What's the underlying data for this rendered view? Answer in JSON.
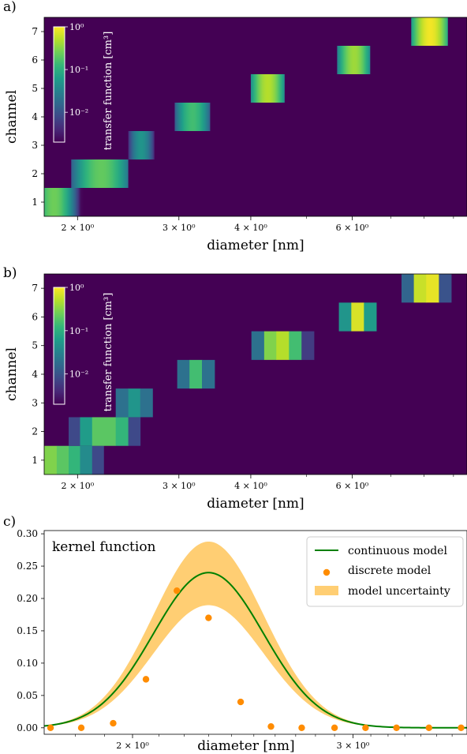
{
  "panels": [
    {
      "panel_label": "a)",
      "chart_data": {
        "type": "heatmap",
        "variant": "continuous",
        "xlabel": "diameter [nm]",
        "ylabel": "channel",
        "x_scale": "log",
        "xlim": [
          1.75,
          9.5
        ],
        "x_ticks": [
          {
            "value": 2,
            "label": "2 × 10⁰"
          },
          {
            "value": 3,
            "label": "3 × 10⁰"
          },
          {
            "value": 4,
            "label": "4 × 10⁰"
          },
          {
            "value": 6,
            "label": "6 × 10⁰"
          }
        ],
        "y_ticks": [
          1,
          2,
          3,
          4,
          5,
          6,
          7
        ],
        "channels": [
          {
            "channel": 1,
            "d_min": 1.75,
            "d_max": 2.05,
            "center": 1.82,
            "peak": 0.25
          },
          {
            "channel": 2,
            "d_min": 1.95,
            "d_max": 2.45,
            "center": 2.2,
            "peak": 0.22
          },
          {
            "channel": 3,
            "d_min": 2.45,
            "d_max": 2.72,
            "center": 2.58,
            "peak": 0.05
          },
          {
            "channel": 4,
            "d_min": 2.95,
            "d_max": 3.4,
            "center": 3.17,
            "peak": 0.15
          },
          {
            "channel": 5,
            "d_min": 4.0,
            "d_max": 4.58,
            "center": 4.28,
            "peak": 0.5
          },
          {
            "channel": 6,
            "d_min": 5.65,
            "d_max": 6.45,
            "center": 6.05,
            "peak": 0.4
          },
          {
            "channel": 7,
            "d_min": 7.6,
            "d_max": 8.8,
            "center": 8.2,
            "peak": 0.9
          }
        ],
        "colorbar": {
          "label": "transfer function [cm³]",
          "scale": "log",
          "range": [
            0.002,
            1
          ],
          "ticks": [
            {
              "value": 1,
              "label": "10⁰"
            },
            {
              "value": 0.1,
              "label": "10⁻¹"
            },
            {
              "value": 0.01,
              "label": "10⁻²"
            }
          ]
        }
      }
    },
    {
      "panel_label": "b)",
      "chart_data": {
        "type": "heatmap",
        "variant": "discrete",
        "xlabel": "diameter [nm]",
        "ylabel": "channel",
        "x_scale": "log",
        "xlim": [
          1.75,
          9.5
        ],
        "x_ticks": [
          {
            "value": 2,
            "label": "2 × 10⁰"
          },
          {
            "value": 3,
            "label": "3 × 10⁰"
          },
          {
            "value": 4,
            "label": "4 × 10⁰"
          },
          {
            "value": 6,
            "label": "6 × 10⁰"
          }
        ],
        "y_ticks": [
          1,
          2,
          3,
          4,
          5,
          6,
          7
        ],
        "bin_edges": [
          1.75,
          1.84,
          1.93,
          2.02,
          2.12,
          2.22,
          2.33,
          2.45,
          2.57,
          2.7,
          2.84,
          2.98,
          3.13,
          3.29,
          3.46,
          3.63,
          3.82,
          4.01,
          4.22,
          4.43,
          4.66,
          4.9,
          5.15,
          5.42,
          5.69,
          5.98,
          6.29,
          6.61,
          6.95,
          7.31,
          7.68,
          8.07,
          8.49,
          8.92,
          9.5
        ],
        "cells": [
          {
            "channel": 1,
            "bin": 0,
            "value": 0.3
          },
          {
            "channel": 1,
            "bin": 1,
            "value": 0.2
          },
          {
            "channel": 1,
            "bin": 2,
            "value": 0.12
          },
          {
            "channel": 1,
            "bin": 3,
            "value": 0.04
          },
          {
            "channel": 1,
            "bin": 4,
            "value": 0.008
          },
          {
            "channel": 2,
            "bin": 2,
            "value": 0.008
          },
          {
            "channel": 2,
            "bin": 3,
            "value": 0.06
          },
          {
            "channel": 2,
            "bin": 4,
            "value": 0.2
          },
          {
            "channel": 2,
            "bin": 5,
            "value": 0.2
          },
          {
            "channel": 2,
            "bin": 6,
            "value": 0.12
          },
          {
            "channel": 2,
            "bin": 7,
            "value": 0.008
          },
          {
            "channel": 3,
            "bin": 6,
            "value": 0.02
          },
          {
            "channel": 3,
            "bin": 7,
            "value": 0.05
          },
          {
            "channel": 3,
            "bin": 8,
            "value": 0.02
          },
          {
            "channel": 4,
            "bin": 11,
            "value": 0.02
          },
          {
            "channel": 4,
            "bin": 12,
            "value": 0.15
          },
          {
            "channel": 4,
            "bin": 13,
            "value": 0.02
          },
          {
            "channel": 5,
            "bin": 17,
            "value": 0.02
          },
          {
            "channel": 5,
            "bin": 18,
            "value": 0.3
          },
          {
            "channel": 5,
            "bin": 19,
            "value": 0.5
          },
          {
            "channel": 5,
            "bin": 20,
            "value": 0.15
          },
          {
            "channel": 5,
            "bin": 21,
            "value": 0.006
          },
          {
            "channel": 6,
            "bin": 24,
            "value": 0.05
          },
          {
            "channel": 6,
            "bin": 25,
            "value": 0.7
          },
          {
            "channel": 6,
            "bin": 26,
            "value": 0.06
          },
          {
            "channel": 7,
            "bin": 29,
            "value": 0.015
          },
          {
            "channel": 7,
            "bin": 30,
            "value": 0.6
          },
          {
            "channel": 7,
            "bin": 31,
            "value": 0.8
          },
          {
            "channel": 7,
            "bin": 32,
            "value": 0.01
          }
        ],
        "colorbar": {
          "label": "transfer function [cm³]",
          "scale": "log",
          "range": [
            0.002,
            1
          ],
          "ticks": [
            {
              "value": 1,
              "label": "10⁰"
            },
            {
              "value": 0.1,
              "label": "10⁻¹"
            },
            {
              "value": 0.01,
              "label": "10⁻²"
            }
          ]
        }
      }
    },
    {
      "panel_label": "c)",
      "chart_data": {
        "type": "line",
        "title": "kernel function",
        "xlabel": "diameter [nm]",
        "ylabel": "",
        "x_scale": "log",
        "xlim": [
          1.7,
          3.7
        ],
        "ylim": [
          -0.01,
          0.305
        ],
        "x_ticks": [
          {
            "value": 2,
            "label": "2 × 10⁰"
          },
          {
            "value": 3,
            "label": "3 × 10⁰"
          }
        ],
        "y_ticks": [
          {
            "value": 0,
            "label": "0.00"
          },
          {
            "value": 0.05,
            "label": "0.05"
          },
          {
            "value": 0.1,
            "label": "0.10"
          },
          {
            "value": 0.15,
            "label": "0.15"
          },
          {
            "value": 0.2,
            "label": "0.20"
          },
          {
            "value": 0.25,
            "label": "0.25"
          },
          {
            "value": 0.3,
            "label": "0.30"
          }
        ],
        "curve": {
          "peak_x": 2.3,
          "peak_y": 0.24,
          "width_log10": 0.044
        },
        "band": {
          "upper_factor": 1.2,
          "lower_factor": 0.79
        },
        "series": [
          {
            "name": "continuous model",
            "type": "line",
            "color": "#008000",
            "x": [
              1.7,
              1.75,
              1.8,
              1.85,
              1.9,
              1.95,
              2.0,
              2.05,
              2.1,
              2.15,
              2.2,
              2.25,
              2.3,
              2.35,
              2.4,
              2.45,
              2.5,
              2.55,
              2.6,
              2.65,
              2.7,
              2.8,
              2.9,
              3.0,
              3.2,
              3.4,
              3.7
            ],
            "y": [
              0.0,
              0.0,
              0.0,
              0.0,
              0.004,
              0.013,
              0.035,
              0.073,
              0.121,
              0.171,
              0.213,
              0.236,
              0.24,
              0.225,
              0.195,
              0.157,
              0.117,
              0.081,
              0.052,
              0.031,
              0.017,
              0.004,
              0.001,
              0.0,
              0.0,
              0.0,
              0.0
            ]
          },
          {
            "name": "discrete model",
            "type": "scatter",
            "color": "#ff8c00",
            "x": [
              1.72,
              1.82,
              1.93,
              2.05,
              2.17,
              2.3,
              2.44,
              2.58,
              2.73,
              2.9,
              3.07,
              3.25,
              3.45,
              3.66
            ],
            "y": [
              0.0,
              0.0,
              0.007,
              0.075,
              0.212,
              0.17,
              0.04,
              0.002,
              0.0,
              0.0,
              0.0,
              0.0,
              0.0,
              0.0
            ]
          },
          {
            "name": "model uncertainty",
            "type": "band",
            "color": "#ffa500"
          }
        ],
        "legend_position": "top-right"
      }
    }
  ],
  "colors": {
    "viridis": [
      "#440154",
      "#482878",
      "#3e4989",
      "#31688e",
      "#26828e",
      "#1f9e89",
      "#35b779",
      "#6ece58",
      "#b5de2b",
      "#fde725"
    ],
    "continuous_line": "#008000",
    "discrete_points": "#ff8c00",
    "uncertainty_band": "#ffa500"
  }
}
